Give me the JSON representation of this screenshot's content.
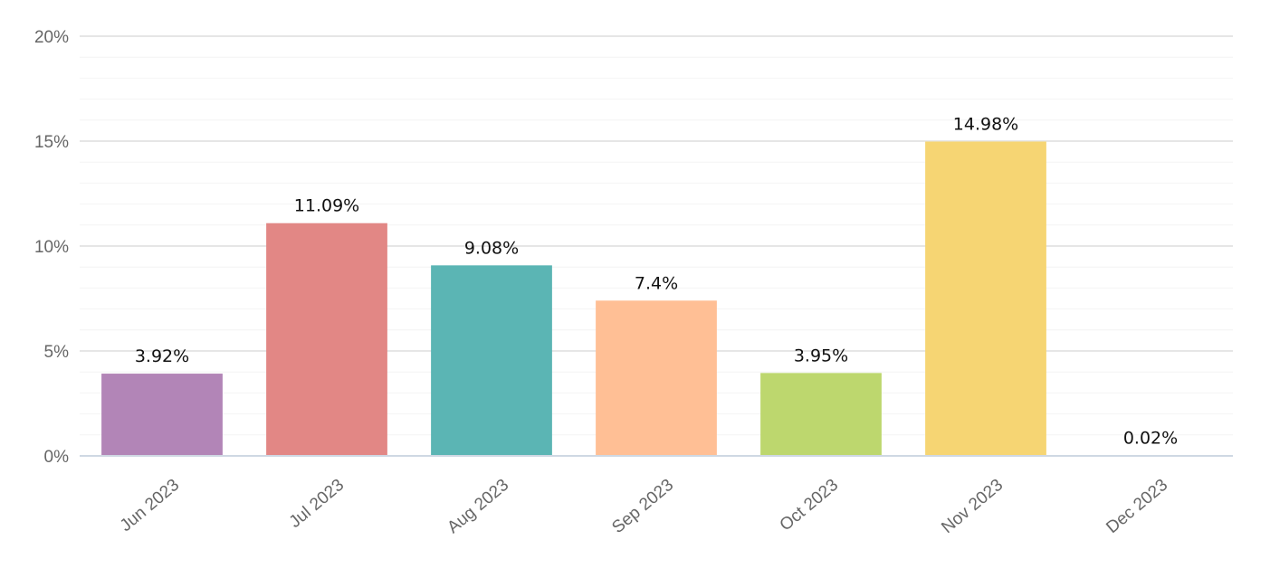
{
  "chart_data": {
    "type": "bar",
    "categories": [
      "Jun 2023",
      "Jul 2023",
      "Aug 2023",
      "Sep 2023",
      "Oct 2023",
      "Nov 2023",
      "Dec 2023"
    ],
    "values": [
      3.92,
      11.09,
      9.08,
      7.4,
      3.95,
      14.98,
      0.02
    ],
    "data_labels": [
      "3.92%",
      "11.09%",
      "9.08%",
      "7.4%",
      "3.95%",
      "14.98%",
      "0.02%"
    ],
    "colors": [
      "#b285b7",
      "#e28785",
      "#5bb5b4",
      "#ffbf95",
      "#bdd76e",
      "#f6d573",
      "#c9d5e8"
    ],
    "y_ticks": [
      0,
      5,
      10,
      15,
      20
    ],
    "y_tick_labels": [
      "0%",
      "5%",
      "10%",
      "15%",
      "20%"
    ],
    "ylim": [
      0,
      20
    ],
    "grid": true,
    "legend": "none"
  }
}
